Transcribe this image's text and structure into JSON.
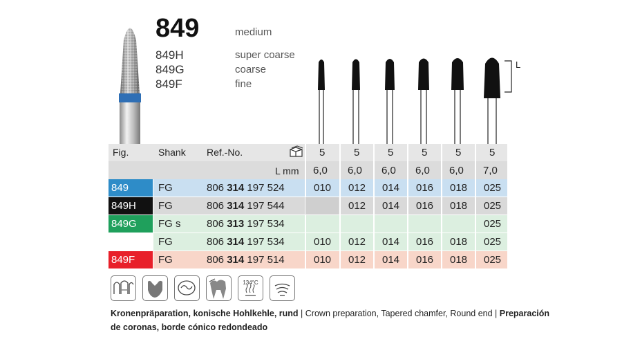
{
  "header": {
    "model": "849",
    "grade": "medium",
    "variants": [
      {
        "code": "849H",
        "grade": "super coarse"
      },
      {
        "code": "849G",
        "grade": "coarse"
      },
      {
        "code": "849F",
        "grade": "fine"
      }
    ]
  },
  "length_marker": "L",
  "table": {
    "headers": {
      "fig": "Fig.",
      "shank": "Shank",
      "ref": "Ref.-No.",
      "lmm": "L mm"
    },
    "packs": [
      "5",
      "5",
      "5",
      "5",
      "5",
      "5"
    ],
    "lengths": [
      "6,0",
      "6,0",
      "6,0",
      "6,0",
      "6,0",
      "7,0"
    ],
    "rows": [
      {
        "fig": "849",
        "fig_color": "#2e8cc8",
        "row_color": "#c9dff1",
        "shank": "FG",
        "ref_pre": "806",
        "ref_bold": "314",
        "ref_post": "197 524",
        "sizes": [
          "010",
          "012",
          "014",
          "016",
          "018",
          "025"
        ]
      },
      {
        "fig": "849H",
        "fig_color": "#111111",
        "row_color": "#d9d9d9",
        "shank": "FG",
        "ref_pre": "806",
        "ref_bold": "314",
        "ref_post": "197 544",
        "sizes": [
          "",
          "012",
          "014",
          "016",
          "018",
          "025"
        ]
      },
      {
        "fig": "849G",
        "fig_color": "#1fa05c",
        "row_color": "#dcefe0",
        "shank": "FG s",
        "ref_pre": "806",
        "ref_bold": "313",
        "ref_post": "197 534",
        "sizes": [
          "",
          "",
          "",
          "",
          "",
          "025"
        ]
      },
      {
        "fig": "",
        "fig_color": "",
        "row_color": "#dcefe0",
        "shank": "FG",
        "ref_pre": "806",
        "ref_bold": "314",
        "ref_post": "197 534",
        "sizes": [
          "010",
          "012",
          "014",
          "016",
          "018",
          "025"
        ]
      },
      {
        "fig": "849F",
        "fig_color": "#e8202a",
        "row_color": "#f8d6c9",
        "shank": "FG",
        "ref_pre": "806",
        "ref_bold": "314",
        "ref_post": "197 514",
        "sizes": [
          "010",
          "012",
          "014",
          "016",
          "018",
          "025"
        ]
      }
    ]
  },
  "icons": {
    "temperature": "134°C",
    "names": [
      "crown-preparation-icon",
      "chamfer-icon",
      "occlusal-icon",
      "tooth-root-icon",
      "autoclave-134c-icon",
      "flame-shape-icon"
    ]
  },
  "description": {
    "de": "Kronenpräparation, konische Hohlkehle, rund",
    "sep1": " | ",
    "en": "Crown preparation, Tapered chamfer, Round end",
    "sep2": " | ",
    "es_line1": "Preparación",
    "es_line2": "de coronas, borde cónico redondeado"
  },
  "colors": {
    "blue_band": "#2f6fb5",
    "header_bg": "#e6e6e6",
    "lmm_bg": "#dcdcdc"
  }
}
